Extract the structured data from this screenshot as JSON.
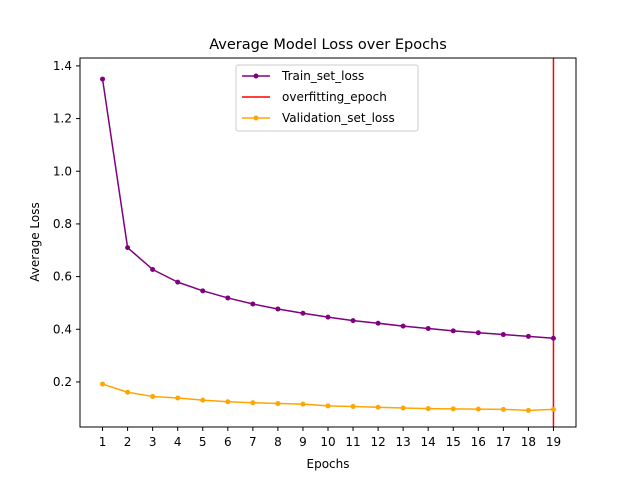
{
  "chart_data": {
    "type": "line",
    "title": "Average Model Loss over Epochs",
    "xlabel": "Epochs",
    "ylabel": "Average Loss",
    "categories": [
      "1",
      "2",
      "3",
      "4",
      "5",
      "6",
      "7",
      "8",
      "9",
      "10",
      "11",
      "12",
      "13",
      "14",
      "15",
      "16",
      "17",
      "18",
      "19"
    ],
    "x": [
      1,
      2,
      3,
      4,
      5,
      6,
      7,
      8,
      9,
      10,
      11,
      12,
      13,
      14,
      15,
      16,
      17,
      18,
      19
    ],
    "xlim": [
      0.1,
      19.9
    ],
    "ylim": [
      0.029,
      1.43
    ],
    "yticks": [
      0.2,
      0.4,
      0.6,
      0.8,
      1.0,
      1.2,
      1.4
    ],
    "ytick_labels": [
      "0.2",
      "0.4",
      "0.6",
      "0.8",
      "1.0",
      "1.2",
      "1.4"
    ],
    "grid": false,
    "legend_position": "upper-center",
    "series": [
      {
        "name": "Train_set_loss",
        "color": "#800080",
        "marker": "dot",
        "values": [
          1.35,
          0.71,
          0.627,
          0.579,
          0.546,
          0.519,
          0.496,
          0.477,
          0.461,
          0.446,
          0.433,
          0.423,
          0.412,
          0.403,
          0.394,
          0.387,
          0.38,
          0.373,
          0.366
        ]
      },
      {
        "name": "Validation_set_loss",
        "color": "#ffa500",
        "marker": "dot",
        "values": [
          0.192,
          0.161,
          0.145,
          0.139,
          0.131,
          0.125,
          0.121,
          0.118,
          0.116,
          0.109,
          0.107,
          0.104,
          0.101,
          0.099,
          0.098,
          0.097,
          0.096,
          0.092,
          0.096
        ]
      }
    ],
    "vlines": [
      {
        "name": "overfitting_epoch",
        "x": 19,
        "color": "#ff0000"
      }
    ],
    "legend_entries": [
      "Train_set_loss",
      "overfitting_epoch",
      "Validation_set_loss"
    ]
  }
}
